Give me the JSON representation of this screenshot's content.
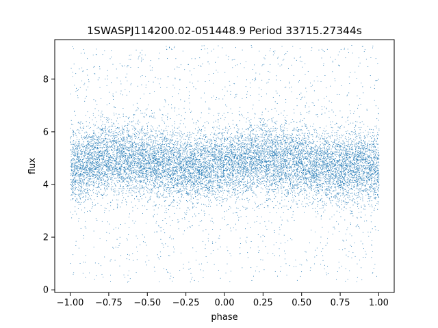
{
  "chart_data": {
    "type": "scatter",
    "title": "1SWASPJ114200.02-051448.9 Period 33715.27344s",
    "xlabel": "phase",
    "ylabel": "flux",
    "xlim": [
      -1.1,
      1.1
    ],
    "ylim": [
      -0.1,
      9.5
    ],
    "x_ticks": [
      -1.0,
      -0.75,
      -0.5,
      -0.25,
      0.0,
      0.25,
      0.5,
      0.75,
      1.0
    ],
    "x_tick_labels": [
      "−1.00",
      "−0.75",
      "−0.50",
      "−0.25",
      "0.00",
      "0.25",
      "0.50",
      "0.75",
      "1.00"
    ],
    "y_ticks": [
      0,
      2,
      4,
      6,
      8
    ],
    "y_tick_labels": [
      "0",
      "2",
      "4",
      "6",
      "8"
    ],
    "grid": false,
    "legend": "none",
    "marker_color": "#1f77b4",
    "series": [
      {
        "x_range": [
          -1.0,
          1.0
        ],
        "y_range": [
          0.3,
          9.3
        ],
        "distribution_summary": {
          "phase": [
            -1.0,
            -0.75,
            -0.5,
            -0.25,
            0.0,
            0.25,
            0.5,
            0.75,
            1.0
          ],
          "median_flux": [
            4.7,
            5.0,
            4.9,
            4.6,
            4.8,
            5.0,
            4.8,
            4.6,
            4.7
          ],
          "dense_band_halfwidth": 0.9
        }
      }
    ]
  }
}
